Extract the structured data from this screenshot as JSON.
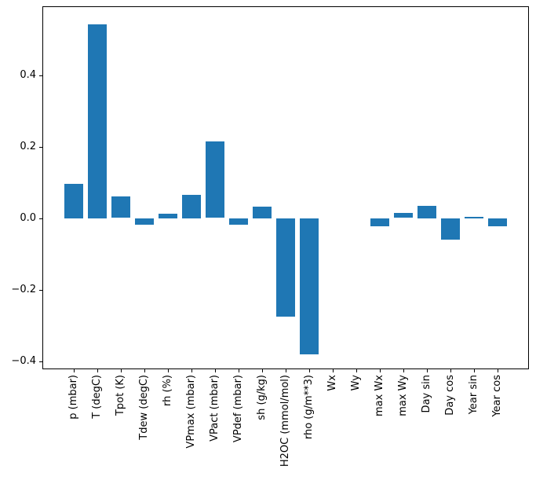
{
  "chart_data": {
    "type": "bar",
    "title": "",
    "xlabel": "",
    "ylabel": "",
    "grid": false,
    "legend": null,
    "bar_color": "#1f77b4",
    "axis_color": "#000000",
    "background_color": "#ffffff",
    "ylim": [
      -0.42,
      0.59
    ],
    "yticks": [
      {
        "label": "0.4",
        "value": 0.4
      },
      {
        "label": "0.2",
        "value": 0.2
      },
      {
        "label": "0.0",
        "value": 0.0
      },
      {
        "label": "−0.2",
        "value": -0.2
      },
      {
        "label": "−0.4",
        "value": -0.4
      }
    ],
    "categories": [
      "p (mbar)",
      "T (degC)",
      "Tpot (K)",
      "Tdew (degC)",
      "rh (%)",
      "VPmax (mbar)",
      "VPact (mbar)",
      "VPdef (mbar)",
      "sh (g/kg)",
      "H2OC (mmol/mol)",
      "rho (g/m**3)",
      "Wx",
      "Wy",
      "max Wx",
      "max Wy",
      "Day sin",
      "Day cos",
      "Year sin",
      "Year cos"
    ],
    "values": [
      0.096,
      0.543,
      0.061,
      -0.018,
      0.012,
      0.065,
      0.214,
      -0.019,
      0.032,
      -0.275,
      -0.382,
      0.0,
      0.0,
      -0.022,
      0.015,
      0.034,
      -0.06,
      0.003,
      -0.023
    ]
  }
}
